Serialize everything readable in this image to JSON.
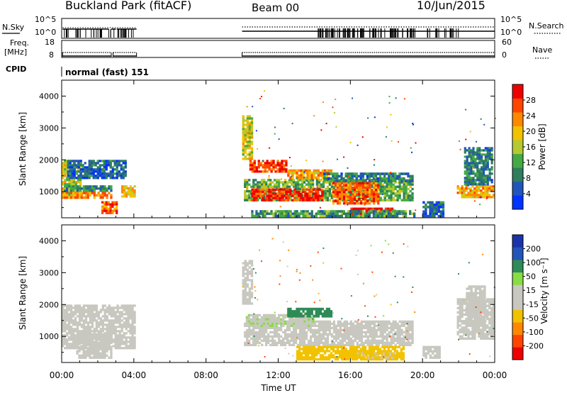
{
  "header": {
    "station": "Buckland Park (fitACF)",
    "beam": "Beam 00",
    "date": "10/Jun/2015"
  },
  "top_panels": {
    "nsky_label": "N.Sky",
    "nsearch_label": "N.Search",
    "nsky_ticks": [
      "10^5",
      "10^0"
    ],
    "nsearch_ticks": [
      "10^5",
      "10^0"
    ],
    "freq_label_1": "Freq.",
    "freq_label_2": "[MHz]",
    "freq_ticks": [
      "18",
      "8"
    ],
    "nave_label": "Nave",
    "nave_ticks": [
      "60",
      "0"
    ],
    "cpid_label": "CPID",
    "cpid_text": "normal (fast) 151"
  },
  "colors": {
    "power_scale": [
      "#0033ff",
      "#2255bb",
      "#2e7d5e",
      "#44aa44",
      "#b5c930",
      "#f2c200",
      "#ff8800",
      "#ff4400",
      "#ee0000"
    ],
    "velocity_scale": [
      "#ee0000",
      "#ff4400",
      "#ff8800",
      "#f2c200",
      "#c8c8c0",
      "#c8c8c0",
      "#88dd44",
      "#2e8b57",
      "#2255bb",
      "#1a33aa"
    ]
  },
  "chart_data": [
    {
      "type": "heatmap",
      "name": "power",
      "xlabel": "",
      "ylabel": "Slant Range [km]",
      "xlim": [
        0,
        24
      ],
      "ylim": [
        180,
        4500
      ],
      "yticks": [
        "1000",
        "2000",
        "3000",
        "4000"
      ],
      "ytick_values": [
        1000,
        2000,
        3000,
        4000
      ],
      "colorbar_label": "Power [dB]",
      "colorbar_ticks": [
        "4",
        "8",
        "12",
        "16",
        "20",
        "24",
        "28"
      ],
      "colorbar_range": [
        0,
        30
      ],
      "regions": [
        {
          "t": [
            0,
            1.1
          ],
          "r": [
            800,
            2000
          ],
          "level": 16
        },
        {
          "t": [
            0,
            2.8
          ],
          "r": [
            780,
            1000
          ],
          "level": 22
        },
        {
          "t": [
            0,
            2.8
          ],
          "r": [
            1000,
            1200
          ],
          "level": 9
        },
        {
          "t": [
            0.3,
            3.6
          ],
          "r": [
            1400,
            2000
          ],
          "level": 6
        },
        {
          "t": [
            2.2,
            3.1
          ],
          "r": [
            300,
            700
          ],
          "level": 24
        },
        {
          "t": [
            3.3,
            4.1
          ],
          "r": [
            820,
            1200
          ],
          "level": 18
        },
        {
          "t": [
            10,
            10.6
          ],
          "r": [
            2000,
            3400
          ],
          "level": 16
        },
        {
          "t": [
            10.1,
            19.5
          ],
          "r": [
            700,
            1400
          ],
          "level": 12
        },
        {
          "t": [
            10.4,
            12.5
          ],
          "r": [
            1600,
            2000
          ],
          "level": 26
        },
        {
          "t": [
            10.5,
            14.5
          ],
          "r": [
            700,
            1100
          ],
          "level": 27
        },
        {
          "t": [
            12.5,
            15,
            0
          ],
          "r": [
            1400,
            1700
          ],
          "level": 20
        },
        {
          "t": [
            15,
            17.6
          ],
          "r": [
            600,
            1300
          ],
          "level": 24
        },
        {
          "t": [
            16,
            18.5
          ],
          "r": [
            250,
            500
          ],
          "level": 28
        },
        {
          "t": [
            10.5,
            19.6
          ],
          "r": [
            200,
            420
          ],
          "level": 10
        },
        {
          "t": [
            14.5,
            19.5
          ],
          "r": [
            1300,
            1600
          ],
          "level": 8
        },
        {
          "t": [
            20,
            21.2
          ],
          "r": [
            200,
            700
          ],
          "level": 6
        },
        {
          "t": [
            21.9,
            24
          ],
          "r": [
            800,
            1200
          ],
          "level": 20
        },
        {
          "t": [
            22.3,
            23.9
          ],
          "r": [
            1200,
            2400
          ],
          "level": 8
        }
      ]
    },
    {
      "type": "heatmap",
      "name": "velocity",
      "xlabel": "Time UT",
      "ylabel": "Slant Range [km]",
      "xlim": [
        0,
        24
      ],
      "ylim": [
        180,
        4500
      ],
      "xticks": [
        "00:00",
        "04:00",
        "08:00",
        "12:00",
        "16:00",
        "20:00",
        "00:00"
      ],
      "xtick_values": [
        0,
        4,
        8,
        12,
        16,
        20,
        24
      ],
      "yticks": [
        "1000",
        "2000",
        "3000",
        "4000"
      ],
      "ytick_values": [
        1000,
        2000,
        3000,
        4000
      ],
      "colorbar_label": "Velocity [m s⁻¹]",
      "colorbar_ticks": [
        "-200",
        "-100",
        "-50",
        "-15",
        "15",
        "50",
        "100",
        "200"
      ],
      "colorbar_range": [
        -250,
        250
      ],
      "regions": [
        {
          "t": [
            0,
            4.1
          ],
          "r": [
            600,
            2000
          ],
          "v": 0
        },
        {
          "t": [
            0.8,
            2.8
          ],
          "r": [
            300,
            1100
          ],
          "v": 30
        },
        {
          "t": [
            10,
            10.6
          ],
          "r": [
            2000,
            3400
          ],
          "v": 20
        },
        {
          "t": [
            10.1,
            19.5
          ],
          "r": [
            700,
            1500
          ],
          "v": 0
        },
        {
          "t": [
            10.2,
            14
          ],
          "r": [
            1300,
            1700
          ],
          "v": 40
        },
        {
          "t": [
            12.5,
            15
          ],
          "r": [
            1600,
            1900
          ],
          "v": 150
        },
        {
          "t": [
            13,
            19
          ],
          "r": [
            250,
            700
          ],
          "v": -30
        },
        {
          "t": [
            16,
            18.5
          ],
          "r": [
            300,
            500
          ],
          "v": -20
        },
        {
          "t": [
            20,
            21
          ],
          "r": [
            300,
            700
          ],
          "v": 0
        },
        {
          "t": [
            21.9,
            24
          ],
          "r": [
            900,
            2200
          ],
          "v": 0
        },
        {
          "t": [
            22.4,
            23.5
          ],
          "r": [
            1300,
            2600
          ],
          "v": 30
        }
      ]
    }
  ]
}
